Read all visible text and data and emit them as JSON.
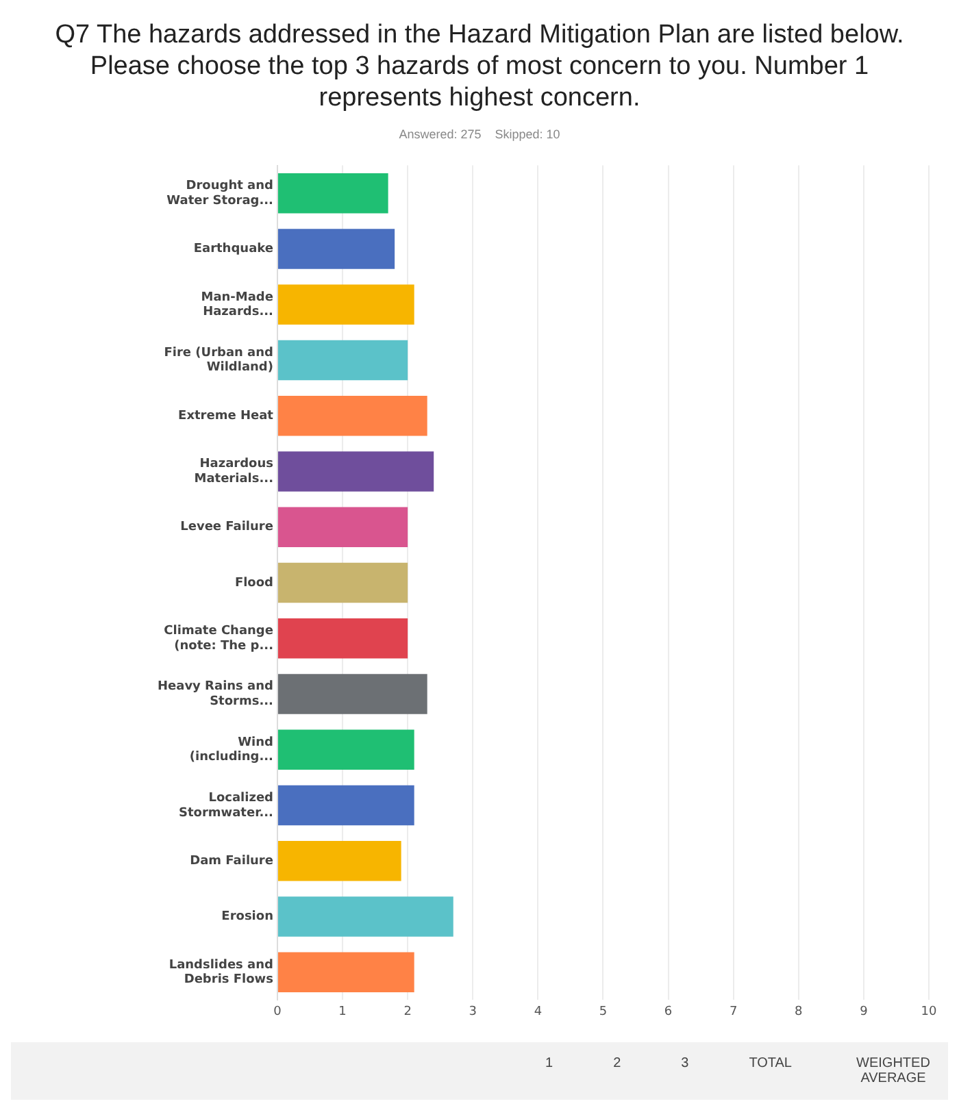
{
  "chart_data": {
    "type": "bar",
    "orientation": "horizontal",
    "title": "Q7 The hazards addressed in the Hazard Mitigation Plan are listed below. Please choose the top 3 hazards of most concern to you. Number 1 represents highest concern.",
    "subtitle": "Answered: 275    Skipped: 10",
    "categories": [
      "Drought and Water Storag...",
      "Earthquake",
      "Man-Made Hazards...",
      "Fire (Urban and Wildland)",
      "Extreme Heat",
      "Hazardous Materials...",
      "Levee Failure",
      "Flood",
      "Climate Change (note: The p...",
      "Heavy Rains and Storms...",
      "Wind (including...",
      "Localized Stormwater...",
      "Dam Failure",
      "Erosion",
      "Landslides and Debris Flows"
    ],
    "values": [
      1.7,
      1.8,
      2.1,
      2.0,
      2.3,
      2.4,
      2.0,
      2.0,
      2.0,
      2.3,
      2.1,
      2.1,
      1.9,
      2.7,
      2.1
    ],
    "colors": [
      "#1fbf73",
      "#4a6fbf",
      "#f7b500",
      "#5bc2c9",
      "#ff8246",
      "#6f4e9c",
      "#d9558f",
      "#c8b46e",
      "#e0434f",
      "#6c7074",
      "#1fbf73",
      "#4a6fbf",
      "#f7b500",
      "#5bc2c9",
      "#ff8246"
    ],
    "xlim": [
      0,
      10
    ],
    "xticks": [
      0,
      1,
      2,
      3,
      4,
      5,
      6,
      7,
      8,
      9,
      10
    ],
    "grid": "x",
    "annotations": [
      "1",
      "2",
      "3",
      "TOTAL",
      "WEIGHTED AVERAGE"
    ]
  }
}
